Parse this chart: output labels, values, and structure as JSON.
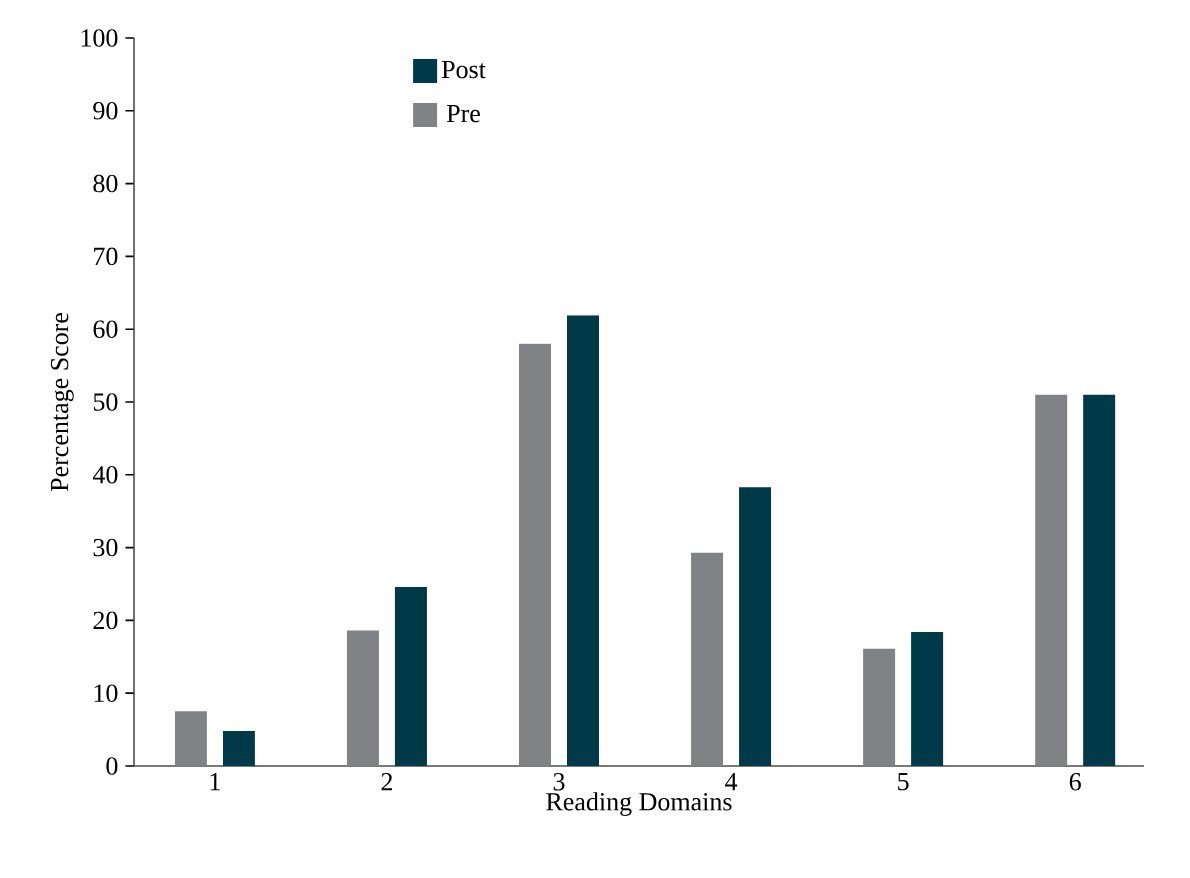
{
  "chart_data": {
    "type": "bar",
    "xlabel": "Reading Domains",
    "ylabel": "Percentage Score",
    "categories": [
      "1",
      "2",
      "3",
      "4",
      "5",
      "6"
    ],
    "series": [
      {
        "name": "Pre",
        "color": "#808285",
        "values": [
          7.5,
          18.6,
          58,
          29.3,
          16.1,
          51
        ]
      },
      {
        "name": "Post",
        "color": "#003a49",
        "values": [
          4.8,
          24.6,
          61.9,
          38.3,
          18.4,
          51
        ]
      }
    ],
    "ylim": [
      0,
      100
    ],
    "yticks": [
      0,
      10,
      20,
      30,
      40,
      50,
      60,
      70,
      80,
      90,
      100
    ],
    "legend": "top left",
    "grid": false
  }
}
